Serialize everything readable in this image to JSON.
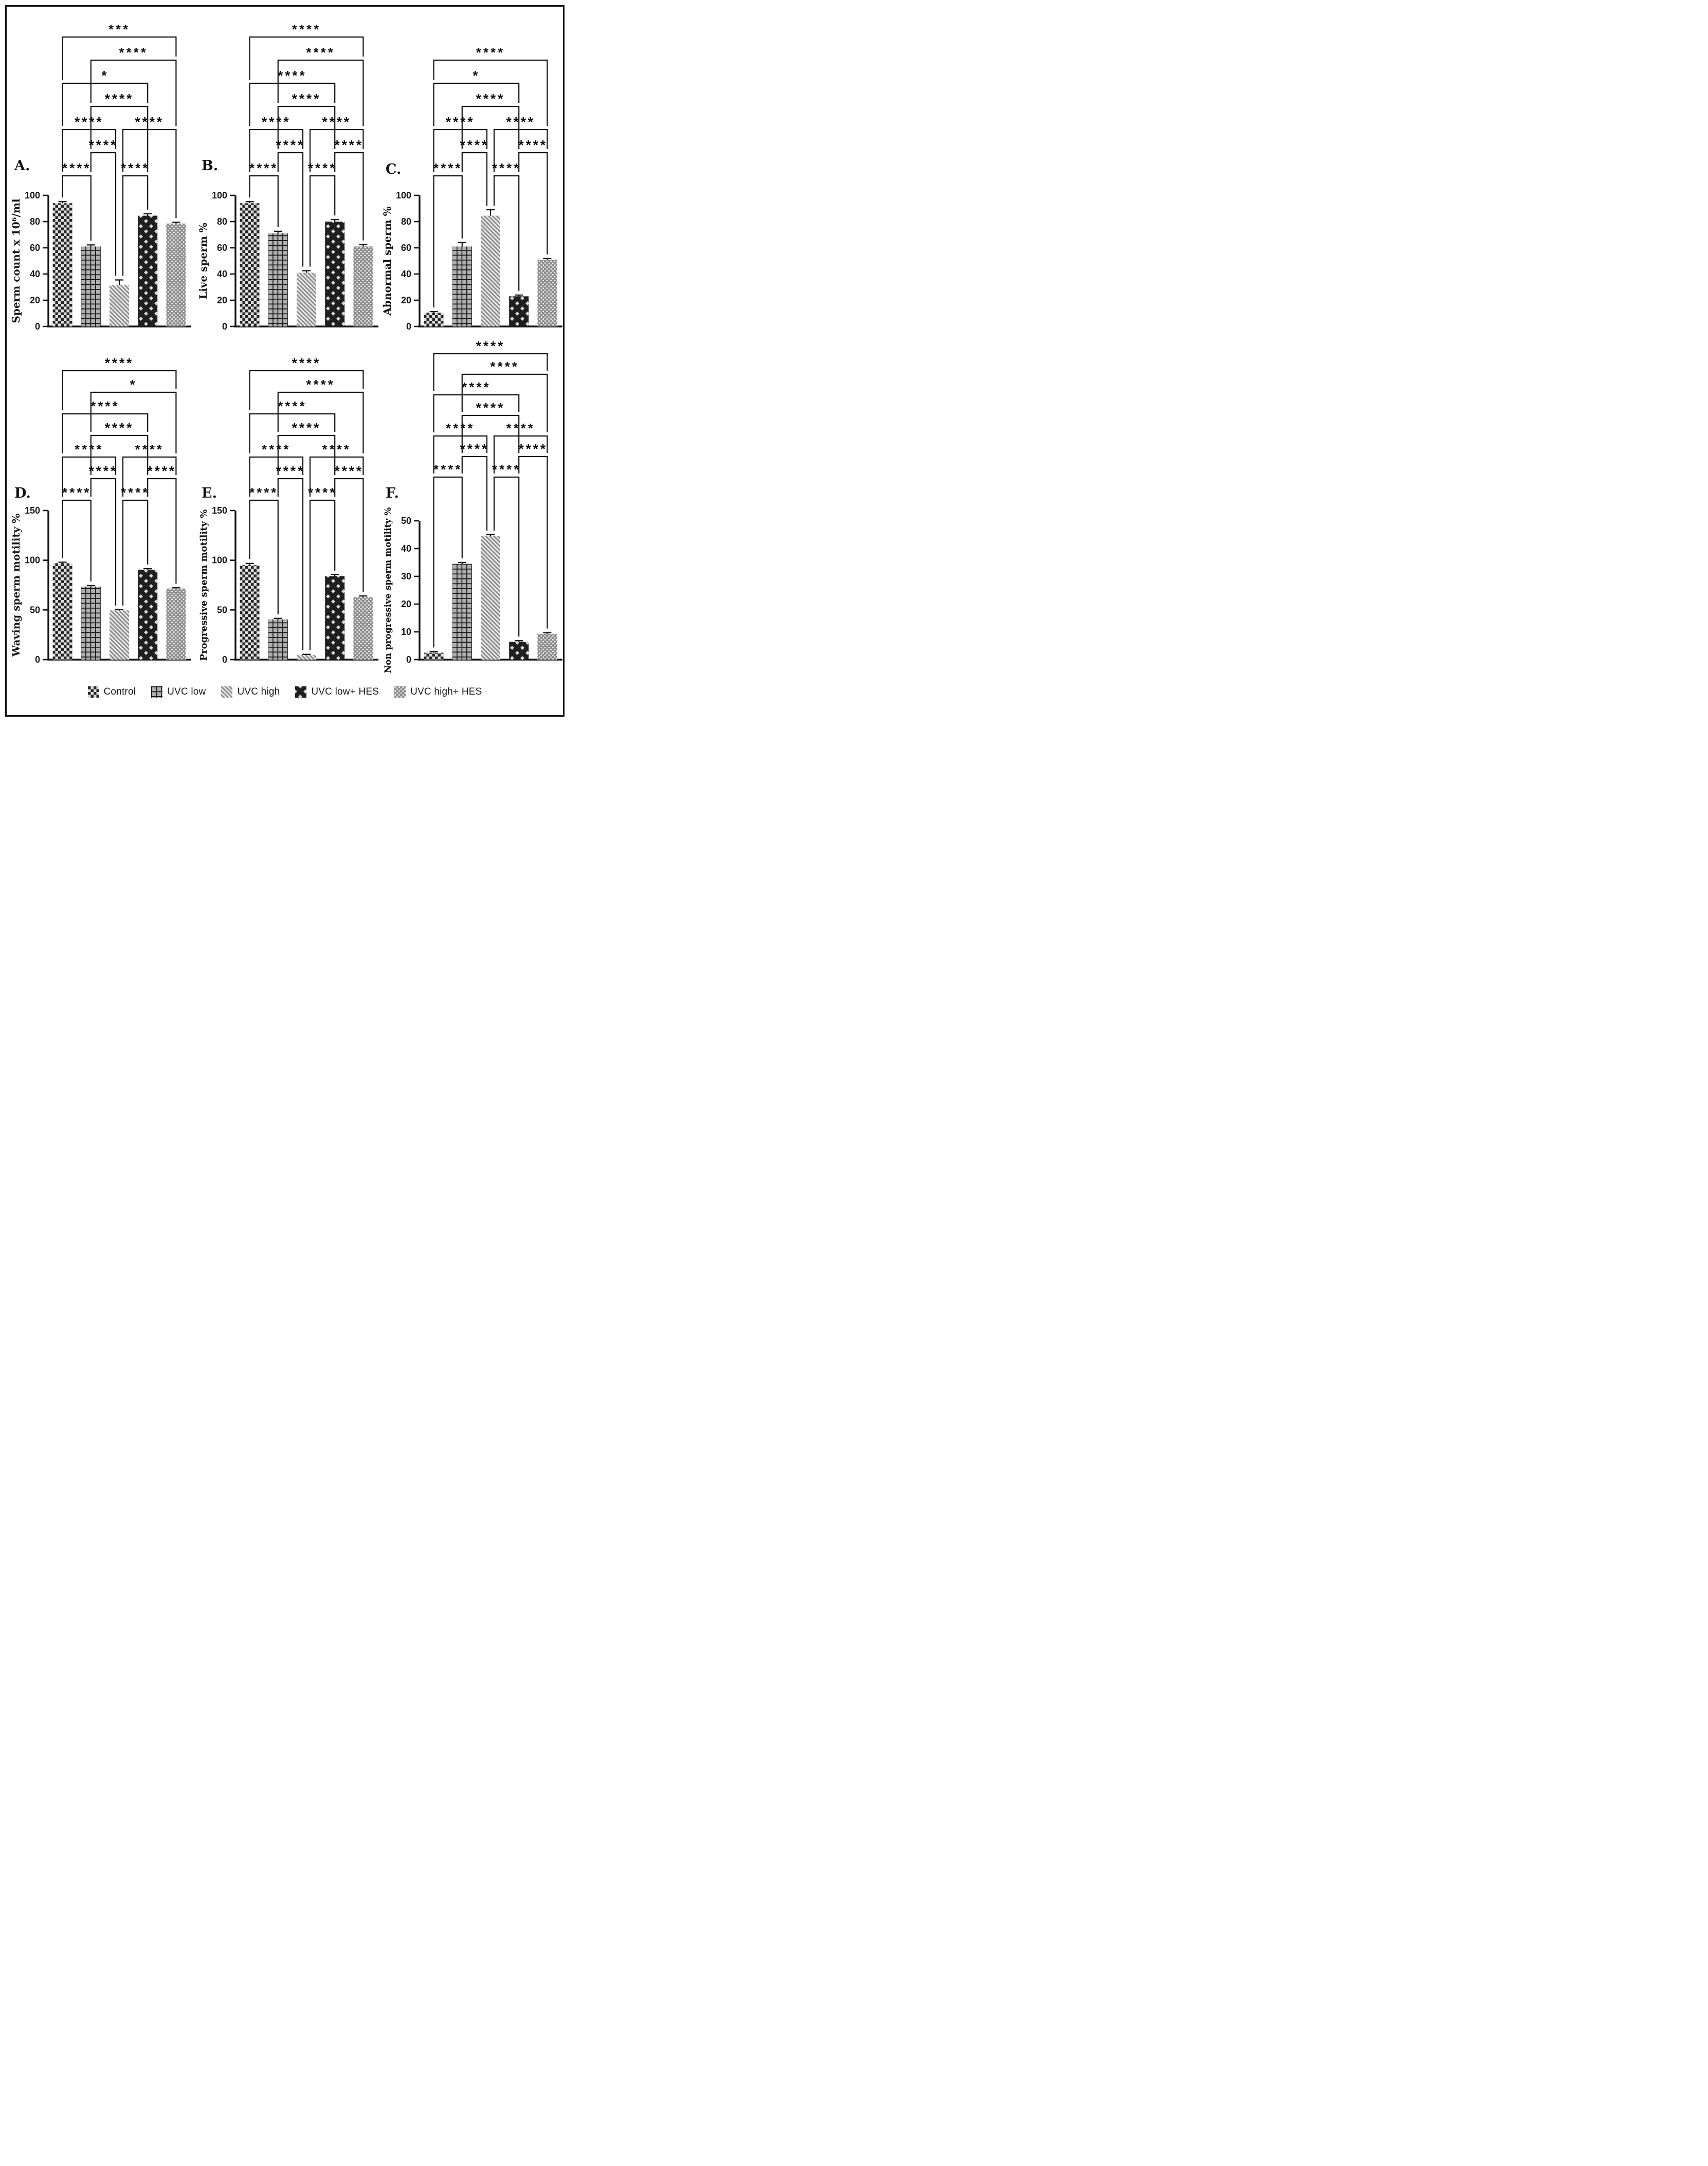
{
  "figure": {
    "kind": "six-panel grouped bar figure with significance brackets",
    "accent_color": "#141414",
    "background": "#ffffff"
  },
  "legend": {
    "items": [
      {
        "label": "Control",
        "pattern": "checker"
      },
      {
        "label": "UVC low",
        "pattern": "grid"
      },
      {
        "label": "UVC high",
        "pattern": "diag"
      },
      {
        "label": "UVC low+ HES",
        "pattern": "weave"
      },
      {
        "label": "UVC high+ HES",
        "pattern": "dots"
      }
    ]
  },
  "chart_data": [
    {
      "id": "A",
      "panel_label": "A.",
      "type": "bar",
      "ylabel": "Sperm count x 10⁶/ml",
      "ylim": [
        0,
        100
      ],
      "ytick_step": 20,
      "grid": false,
      "categories": [
        "Control",
        "UVC low",
        "UVC high",
        "UVC low+ HES",
        "UVC high+ HES"
      ],
      "values": [
        94,
        61,
        31.5,
        84.5,
        78.5
      ],
      "errors": [
        1.2,
        1.2,
        4,
        1.5,
        1
      ],
      "significance": [
        {
          "a": 1,
          "b": 5,
          "label": "***",
          "row": 1
        },
        {
          "a": 2,
          "b": 5,
          "label": "****",
          "row": 2
        },
        {
          "a": 1,
          "b": 4,
          "label": "*",
          "row": 3
        },
        {
          "a": 2,
          "b": 4,
          "label": "****",
          "row": 4
        },
        {
          "a": 1,
          "b": 3,
          "label": "****",
          "row": 5
        },
        {
          "a": 3,
          "b": 5,
          "label": "****",
          "row": 5
        },
        {
          "a": 2,
          "b": 3,
          "label": "****",
          "row": 6
        },
        {
          "a": 1,
          "b": 2,
          "label": "****",
          "row": 7
        },
        {
          "a": 3,
          "b": 4,
          "label": "****",
          "row": 7
        }
      ]
    },
    {
      "id": "B",
      "panel_label": "B.",
      "type": "bar",
      "ylabel": "Live sperm %",
      "ylim": [
        0,
        100
      ],
      "ytick_step": 20,
      "grid": false,
      "categories": [
        "Control",
        "UVC low",
        "UVC high",
        "UVC low+ HES",
        "UVC high+ HES"
      ],
      "values": [
        94,
        71,
        41,
        80,
        61
      ],
      "errors": [
        1.2,
        1.6,
        1.5,
        1.5,
        1.5
      ],
      "significance": [
        {
          "a": 1,
          "b": 5,
          "label": "****",
          "row": 1
        },
        {
          "a": 2,
          "b": 5,
          "label": "****",
          "row": 2
        },
        {
          "a": 1,
          "b": 4,
          "label": "****",
          "row": 3
        },
        {
          "a": 2,
          "b": 4,
          "label": "****",
          "row": 4
        },
        {
          "a": 1,
          "b": 3,
          "label": "****",
          "row": 5
        },
        {
          "a": 3,
          "b": 5,
          "label": "****",
          "row": 5
        },
        {
          "a": 2,
          "b": 3,
          "label": "****",
          "row": 6
        },
        {
          "a": 4,
          "b": 5,
          "label": "****",
          "row": 6
        },
        {
          "a": 1,
          "b": 2,
          "label": "****",
          "row": 7
        },
        {
          "a": 3,
          "b": 4,
          "label": "****",
          "row": 7
        }
      ]
    },
    {
      "id": "C",
      "panel_label": "C.",
      "type": "bar",
      "ylabel": "Abnormal sperm %",
      "ylim": [
        0,
        100
      ],
      "ytick_step": 20,
      "grid": false,
      "categories": [
        "Control",
        "UVC low",
        "UVC high",
        "UVC low+ HES",
        "UVC high+ HES"
      ],
      "values": [
        10.5,
        61,
        84.5,
        23,
        51
      ],
      "errors": [
        0.8,
        3,
        4.5,
        1,
        0.8
      ],
      "significance": [
        {
          "a": 1,
          "b": 5,
          "label": "****",
          "row": 1
        },
        {
          "a": 1,
          "b": 4,
          "label": "*",
          "row": 2
        },
        {
          "a": 2,
          "b": 4,
          "label": "****",
          "row": 3
        },
        {
          "a": 1,
          "b": 3,
          "label": "****",
          "row": 4
        },
        {
          "a": 3,
          "b": 5,
          "label": "****",
          "row": 4
        },
        {
          "a": 2,
          "b": 3,
          "label": "****",
          "row": 5
        },
        {
          "a": 4,
          "b": 5,
          "label": "****",
          "row": 5
        },
        {
          "a": 1,
          "b": 2,
          "label": "****",
          "row": 6
        },
        {
          "a": 3,
          "b": 4,
          "label": "****",
          "row": 6
        }
      ]
    },
    {
      "id": "D",
      "panel_label": "D.",
      "type": "bar",
      "ylabel": "Waving sperm motility %",
      "ylim": [
        0,
        150
      ],
      "ytick_step": 50,
      "grid": false,
      "categories": [
        "Control",
        "UVC low",
        "UVC high",
        "UVC low+ HES",
        "UVC high+ HES"
      ],
      "values": [
        97,
        73.5,
        49.5,
        90.5,
        71.5
      ],
      "errors": [
        1,
        1,
        0.8,
        1,
        0.8
      ],
      "significance": [
        {
          "a": 1,
          "b": 5,
          "label": "****",
          "row": 1
        },
        {
          "a": 2,
          "b": 5,
          "label": "*",
          "row": 2
        },
        {
          "a": 1,
          "b": 4,
          "label": "****",
          "row": 3
        },
        {
          "a": 2,
          "b": 4,
          "label": "****",
          "row": 4
        },
        {
          "a": 1,
          "b": 3,
          "label": "****",
          "row": 5
        },
        {
          "a": 3,
          "b": 5,
          "label": "****",
          "row": 5
        },
        {
          "a": 2,
          "b": 3,
          "label": "****",
          "row": 6
        },
        {
          "a": 4,
          "b": 5,
          "label": "****",
          "row": 6
        },
        {
          "a": 1,
          "b": 2,
          "label": "****",
          "row": 7
        },
        {
          "a": 3,
          "b": 4,
          "label": "****",
          "row": 7
        }
      ]
    },
    {
      "id": "E",
      "panel_label": "E.",
      "type": "bar",
      "ylabel": "Progressive sperm motility %",
      "ylim": [
        0,
        150
      ],
      "ytick_step": 50,
      "grid": false,
      "categories": [
        "Control",
        "UVC low",
        "UVC high",
        "UVC low+ HES",
        "UVC high+ HES"
      ],
      "values": [
        95,
        40.5,
        4.5,
        84,
        63
      ],
      "errors": [
        1.8,
        1,
        0.8,
        1.5,
        1
      ],
      "significance": [
        {
          "a": 1,
          "b": 5,
          "label": "****",
          "row": 1
        },
        {
          "a": 2,
          "b": 5,
          "label": "****",
          "row": 2
        },
        {
          "a": 1,
          "b": 4,
          "label": "****",
          "row": 3
        },
        {
          "a": 2,
          "b": 4,
          "label": "****",
          "row": 4
        },
        {
          "a": 1,
          "b": 3,
          "label": "****",
          "row": 5
        },
        {
          "a": 3,
          "b": 5,
          "label": "****",
          "row": 5
        },
        {
          "a": 2,
          "b": 3,
          "label": "****",
          "row": 6
        },
        {
          "a": 4,
          "b": 5,
          "label": "****",
          "row": 6
        },
        {
          "a": 1,
          "b": 2,
          "label": "****",
          "row": 7
        },
        {
          "a": 3,
          "b": 4,
          "label": "****",
          "row": 7
        }
      ]
    },
    {
      "id": "F",
      "panel_label": "F.",
      "type": "bar",
      "ylabel": "Non progressive sperm motility %",
      "ylim": [
        0,
        50
      ],
      "ytick_step": 10,
      "grid": false,
      "categories": [
        "Control",
        "UVC low",
        "UVC high",
        "UVC low+ HES",
        "UVC high+ HES"
      ],
      "values": [
        2.5,
        34.5,
        44.5,
        6.4,
        9.3
      ],
      "errors": [
        0.4,
        0.5,
        0.5,
        0.4,
        0.4
      ],
      "significance": [
        {
          "a": 1,
          "b": 5,
          "label": "****",
          "row": 1
        },
        {
          "a": 2,
          "b": 5,
          "label": "****",
          "row": 2
        },
        {
          "a": 1,
          "b": 4,
          "label": "****",
          "row": 3
        },
        {
          "a": 2,
          "b": 4,
          "label": "****",
          "row": 4
        },
        {
          "a": 1,
          "b": 3,
          "label": "****",
          "row": 5
        },
        {
          "a": 3,
          "b": 5,
          "label": "****",
          "row": 5
        },
        {
          "a": 2,
          "b": 3,
          "label": "****",
          "row": 6
        },
        {
          "a": 4,
          "b": 5,
          "label": "****",
          "row": 6
        },
        {
          "a": 1,
          "b": 2,
          "label": "****",
          "row": 7
        },
        {
          "a": 3,
          "b": 4,
          "label": "****",
          "row": 7
        }
      ]
    }
  ]
}
